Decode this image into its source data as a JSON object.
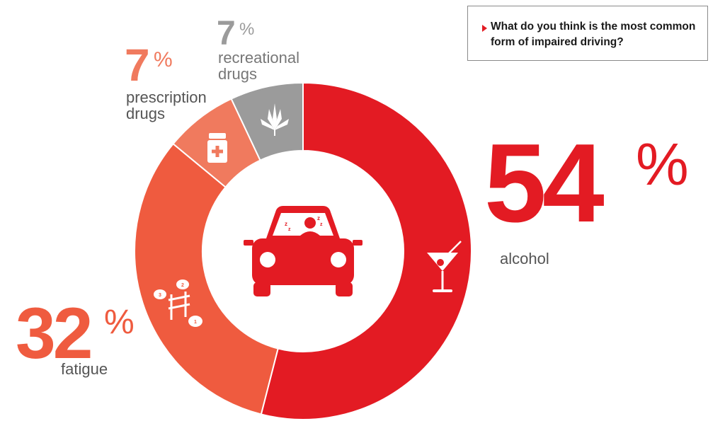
{
  "question": "What do you think is the most common form of impaired driving?",
  "chart_data": {
    "type": "pie",
    "categories": [
      "alcohol",
      "fatigue",
      "prescription drugs",
      "recreational drugs"
    ],
    "values": [
      54,
      32,
      7,
      7
    ],
    "value_labels": [
      "54",
      "32",
      "7",
      "7"
    ],
    "percent_symbol": "%",
    "colors": [
      "#e31b23",
      "#ef5b3f",
      "#f07a5e",
      "#9b9b9b"
    ],
    "center_icon": "car-sleeping-driver-icon",
    "segment_icons": [
      "martini-glass-icon",
      "counting-sheep-icon",
      "pill-bottle-icon",
      "cannabis-leaf-icon"
    ]
  }
}
